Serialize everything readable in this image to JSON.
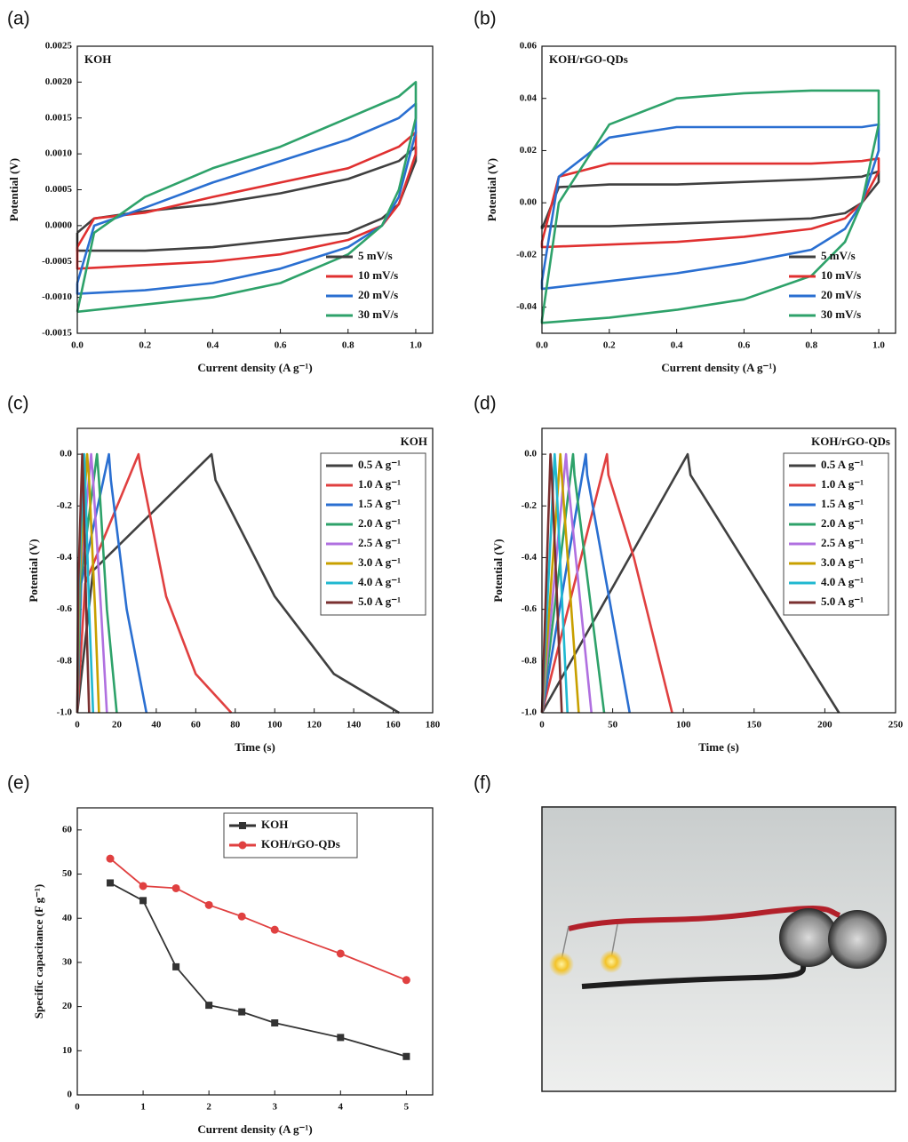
{
  "panel_labels": [
    "(a)",
    "(b)",
    "(c)",
    "(d)",
    "(e)",
    "(f)"
  ],
  "chart_data": [
    {
      "type": "line",
      "title": "KOH",
      "x_label": "Current density (A g⁻¹)",
      "y_label": "Potential (V)",
      "xlim": [
        0,
        1.05
      ],
      "ylim": [
        -0.0015,
        0.0025
      ],
      "xticks": [
        {
          "value": 0,
          "label": "0.0"
        },
        0.2,
        0.4,
        0.6,
        0.8,
        {
          "value": 1,
          "label": "1.0"
        }
      ],
      "yticks": [
        -0.0015,
        {
          "value": -0.001,
          "label": "-0.0010"
        },
        -0.0005,
        {
          "value": 0,
          "label": "0.0000"
        },
        0.0005,
        {
          "value": 0.001,
          "label": "0.0010"
        },
        0.0015,
        {
          "value": 0.002,
          "label": "0.0020"
        },
        0.0025
      ],
      "legend": "lower right",
      "x": [
        0,
        0.05,
        0.2,
        0.4,
        0.6,
        0.8,
        0.95,
        1,
        1,
        0.95,
        0.9,
        0.8,
        0.6,
        0.4,
        0.2,
        0,
        0
      ],
      "series": [
        {
          "name": "5 mV/s",
          "color": "#404040",
          "values": [
            -0.0001,
            0.0001,
            0.0002,
            0.0003,
            0.00045,
            0.00065,
            0.0009,
            0.0011,
            0.0009,
            0.0003,
            0.0001,
            -0.0001,
            -0.0002,
            -0.0003,
            -0.00035,
            -0.00035,
            -0.0001
          ]
        },
        {
          "name": "10 mV/s",
          "color": "#e03030",
          "values": [
            -0.0003,
            0.0001,
            0.00018,
            0.0004,
            0.0006,
            0.0008,
            0.0011,
            0.0013,
            0.001,
            0.0003,
            0,
            -0.0002,
            -0.0004,
            -0.0005,
            -0.00055,
            -0.0006,
            -0.0003
          ]
        },
        {
          "name": "20 mV/s",
          "color": "#2a6fd1",
          "values": [
            -0.0008,
            0,
            0.00025,
            0.0006,
            0.0009,
            0.0012,
            0.0015,
            0.0017,
            0.0013,
            0.0004,
            0,
            -0.0003,
            -0.0006,
            -0.0008,
            -0.0009,
            -0.00095,
            -0.0008
          ]
        },
        {
          "name": "30 mV/s",
          "color": "#2ea26a",
          "values": [
            -0.0012,
            -0.0001,
            0.0004,
            0.0008,
            0.0011,
            0.0015,
            0.0018,
            0.002,
            0.0015,
            0.0005,
            0,
            -0.0004,
            -0.0008,
            -0.001,
            -0.0011,
            -0.0012,
            -0.0012
          ]
        }
      ]
    },
    {
      "type": "line",
      "title": "KOH/rGO-QDs",
      "x_label": "Current density (A g⁻¹)",
      "y_label": "Potential (V)",
      "xlim": [
        0,
        1.05
      ],
      "ylim": [
        -0.05,
        0.06
      ],
      "xticks": [
        {
          "value": 0,
          "label": "0.0"
        },
        0.2,
        0.4,
        0.6,
        0.8,
        {
          "value": 1,
          "label": "1.0"
        }
      ],
      "yticks": [
        -0.04,
        -0.02,
        {
          "value": 0,
          "label": "0.00"
        },
        0.02,
        0.04,
        0.06
      ],
      "legend": "lower right",
      "x": [
        0,
        0.05,
        0.2,
        0.4,
        0.6,
        0.8,
        0.95,
        1,
        1,
        0.95,
        0.9,
        0.8,
        0.6,
        0.4,
        0.2,
        0,
        0
      ],
      "series": [
        {
          "name": "5 mV/s",
          "color": "#404040",
          "values": [
            -0.01,
            0.006,
            0.007,
            0.007,
            0.008,
            0.009,
            0.01,
            0.012,
            0.008,
            0,
            -0.004,
            -0.006,
            -0.007,
            -0.008,
            -0.009,
            -0.009,
            -0.01
          ]
        },
        {
          "name": "10 mV/s",
          "color": "#e03030",
          "values": [
            -0.015,
            0.01,
            0.015,
            0.015,
            0.015,
            0.015,
            0.016,
            0.017,
            0.012,
            0,
            -0.006,
            -0.01,
            -0.013,
            -0.015,
            -0.016,
            -0.017,
            -0.015
          ]
        },
        {
          "name": "20 mV/s",
          "color": "#2a6fd1",
          "values": [
            -0.03,
            0.01,
            0.025,
            0.029,
            0.029,
            0.029,
            0.029,
            0.03,
            0.02,
            0,
            -0.01,
            -0.018,
            -0.023,
            -0.027,
            -0.03,
            -0.033,
            -0.03
          ]
        },
        {
          "name": "30 mV/s",
          "color": "#2ea26a",
          "values": [
            -0.045,
            0,
            0.03,
            0.04,
            0.042,
            0.043,
            0.043,
            0.043,
            0.03,
            0,
            -0.015,
            -0.028,
            -0.037,
            -0.041,
            -0.044,
            -0.046,
            -0.045
          ]
        }
      ]
    },
    {
      "type": "line",
      "title": "KOH",
      "x_label": "Time (s)",
      "y_label": "Potential (V)",
      "xlim": [
        0,
        180
      ],
      "ylim": [
        -1,
        0.1
      ],
      "xticks": [
        0,
        20,
        40,
        60,
        80,
        100,
        120,
        140,
        160,
        180
      ],
      "yticks": [
        {
          "value": -1,
          "label": "-1.0"
        },
        -0.8,
        -0.6,
        -0.4,
        -0.2,
        {
          "value": 0,
          "label": "0.0"
        }
      ],
      "legend": "upper right",
      "series": [
        {
          "name": "0.5 A g⁻¹",
          "color": "#404040",
          "x": [
            0,
            8,
            68,
            70,
            100,
            130,
            163
          ],
          "values": [
            -1,
            -0.45,
            0,
            -0.1,
            -0.55,
            -0.85,
            -1
          ]
        },
        {
          "name": "1.0 A g⁻¹",
          "color": "#e04040",
          "x": [
            0,
            4,
            31,
            32,
            45,
            60,
            78
          ],
          "values": [
            -1,
            -0.5,
            0,
            -0.05,
            -0.55,
            -0.85,
            -1
          ]
        },
        {
          "name": "1.5 A g⁻¹",
          "color": "#2a6fd1",
          "x": [
            0,
            2,
            16,
            17,
            25,
            35
          ],
          "values": [
            -1,
            -0.5,
            0,
            -0.1,
            -0.6,
            -1
          ]
        },
        {
          "name": "2.0 A g⁻¹",
          "color": "#2ea26a",
          "x": [
            0,
            1.5,
            10,
            11,
            15,
            20
          ],
          "values": [
            -1,
            -0.5,
            0,
            -0.1,
            -0.6,
            -1
          ]
        },
        {
          "name": "2.5 A g⁻¹",
          "color": "#b070e0",
          "x": [
            0,
            1,
            7,
            8,
            12,
            15
          ],
          "values": [
            -1,
            -0.5,
            0,
            -0.1,
            -0.6,
            -1
          ]
        },
        {
          "name": "3.0 A g⁻¹",
          "color": "#c8a000",
          "x": [
            0,
            1,
            5,
            6,
            9,
            11
          ],
          "values": [
            -1,
            -0.5,
            0,
            -0.1,
            -0.6,
            -1
          ]
        },
        {
          "name": "4.0 A g⁻¹",
          "color": "#20b8d0",
          "x": [
            0,
            0.7,
            3.5,
            4,
            6,
            8
          ],
          "values": [
            -1,
            -0.5,
            0,
            -0.1,
            -0.6,
            -1
          ]
        },
        {
          "name": "5.0 A g⁻¹",
          "color": "#7a3030",
          "x": [
            0,
            0.5,
            2.5,
            3,
            4.5,
            6
          ],
          "values": [
            -1,
            -0.5,
            0,
            -0.1,
            -0.6,
            -1
          ]
        }
      ]
    },
    {
      "type": "line",
      "title": "KOH/rGO-QDs",
      "x_label": "Time (s)",
      "y_label": "Potential (V)",
      "xlim": [
        0,
        250
      ],
      "ylim": [
        -1,
        0.1
      ],
      "xticks": [
        0,
        50,
        100,
        150,
        200,
        250
      ],
      "yticks": [
        {
          "value": -1,
          "label": "-1.0"
        },
        -0.8,
        -0.6,
        -0.4,
        -0.2,
        {
          "value": 0,
          "label": "0.0"
        }
      ],
      "legend": "upper right",
      "series": [
        {
          "name": "0.5 A g⁻¹",
          "color": "#404040",
          "x": [
            0,
            103,
            105,
            210
          ],
          "values": [
            -1,
            0,
            -0.08,
            -1
          ]
        },
        {
          "name": "1.0 A g⁻¹",
          "color": "#e04040",
          "x": [
            0,
            46,
            47,
            65,
            92
          ],
          "values": [
            -1,
            0,
            -0.08,
            -0.4,
            -1
          ]
        },
        {
          "name": "1.5 A g⁻¹",
          "color": "#2a6fd1",
          "x": [
            0,
            31,
            32,
            62
          ],
          "values": [
            -1,
            0,
            -0.08,
            -1
          ]
        },
        {
          "name": "2.0 A g⁻¹",
          "color": "#2ea26a",
          "x": [
            0,
            22,
            23,
            44
          ],
          "values": [
            -1,
            0,
            -0.08,
            -1
          ]
        },
        {
          "name": "2.5 A g⁻¹",
          "color": "#b070e0",
          "x": [
            0,
            17,
            18,
            35
          ],
          "values": [
            -1,
            0,
            -0.08,
            -1
          ]
        },
        {
          "name": "3.0 A g⁻¹",
          "color": "#c8a000",
          "x": [
            0,
            13,
            14,
            26
          ],
          "values": [
            -1,
            0,
            -0.08,
            -1
          ]
        },
        {
          "name": "4.0 A g⁻¹",
          "color": "#20b8d0",
          "x": [
            0,
            9,
            10,
            18
          ],
          "values": [
            -1,
            0,
            -0.08,
            -1
          ]
        },
        {
          "name": "5.0 A g⁻¹",
          "color": "#7a3030",
          "x": [
            0,
            6,
            7,
            14
          ],
          "values": [
            -1,
            0,
            -0.08,
            -1
          ]
        }
      ]
    },
    {
      "type": "line",
      "x_label": "Current density (A g⁻¹)",
      "y_label": "Specific capacitance (F g⁻¹)",
      "xlim": [
        0,
        5.4
      ],
      "ylim": [
        0,
        65
      ],
      "xticks": [
        0,
        1,
        2,
        3,
        4,
        5
      ],
      "yticks": [
        0,
        10,
        20,
        30,
        40,
        50,
        60
      ],
      "legend": "upper center",
      "x": [
        0.5,
        1,
        1.5,
        2,
        2.5,
        3,
        4,
        5
      ],
      "series": [
        {
          "name": "KOH",
          "color": "#333333",
          "marker": "square",
          "values": [
            48,
            44,
            29,
            20.3,
            18.8,
            16.3,
            13,
            8.7
          ]
        },
        {
          "name": "KOH/rGO-QDs",
          "color": "#e04040",
          "marker": "circle",
          "values": [
            53.5,
            47.3,
            46.8,
            43,
            40.4,
            37.4,
            32,
            26
          ]
        }
      ]
    }
  ]
}
